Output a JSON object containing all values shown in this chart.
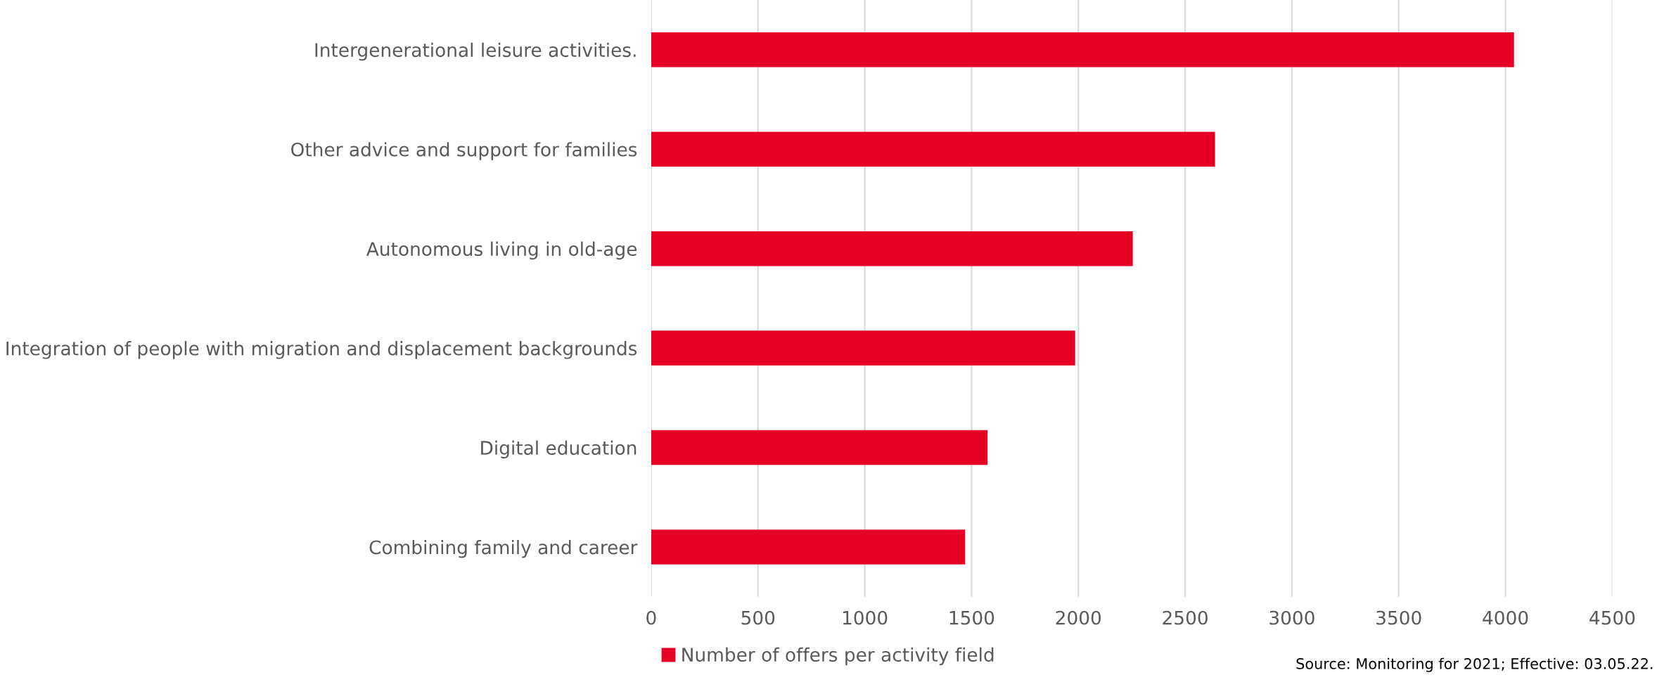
{
  "chart_data": {
    "type": "bar",
    "orientation": "horizontal",
    "categories": [
      "Intergenerational leisure activities.",
      "Other advice and support for families",
      "Autonomous living in old-age",
      "Integration of people with migration and displacement backgrounds",
      "Digital education",
      "Combining family and career"
    ],
    "series": [
      {
        "name": "Number of offers per activity field",
        "color": "#e60023",
        "values": [
          4040,
          2640,
          2255,
          1985,
          1575,
          1470
        ]
      }
    ],
    "xlim": [
      0,
      4500
    ],
    "xticks": [
      0,
      500,
      1000,
      1500,
      2000,
      2500,
      3000,
      3500,
      4000,
      4500
    ],
    "grid": "x",
    "legend": "bottom",
    "annotations": [
      "Source: Monitoring for 2021; Effective: 03.05.22."
    ]
  }
}
